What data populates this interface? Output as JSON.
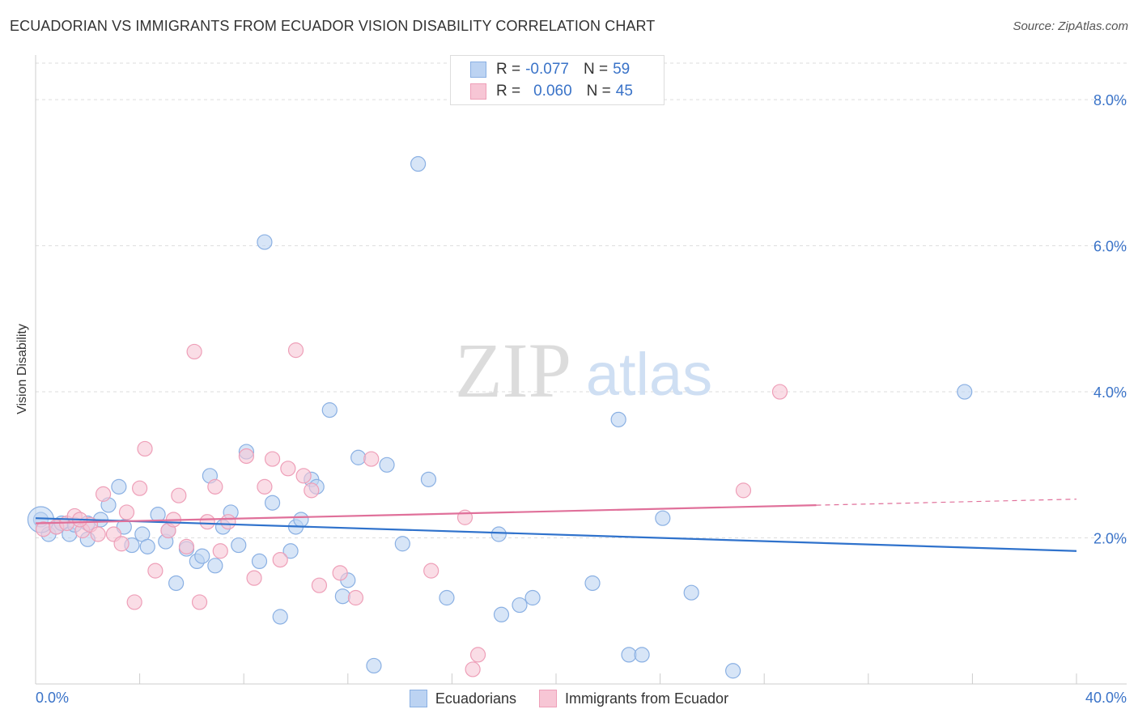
{
  "title": "ECUADORIAN VS IMMIGRANTS FROM ECUADOR VISION DISABILITY CORRELATION CHART",
  "source": "Source: ZipAtlas.com",
  "watermark": {
    "zip": "ZIP",
    "atlas": "atlas"
  },
  "colors": {
    "blue_fill": "#bcd3f2",
    "blue_stroke": "#8ab0e3",
    "blue_line": "#2f72cc",
    "pink_fill": "#f7c6d5",
    "pink_stroke": "#ee9fb8",
    "pink_line": "#e0709a",
    "axis_text": "#3a73c8",
    "grid": "#dddddd"
  },
  "legend_top": [
    {
      "r_label": "R =",
      "r_value": "-0.077",
      "n_label": "N =",
      "n_value": "59",
      "color": "blue"
    },
    {
      "r_label": "R =",
      "r_value": "0.060",
      "n_label": "N =",
      "n_value": "45",
      "color": "pink"
    }
  ],
  "chart_data": {
    "type": "scatter",
    "title": "ECUADORIAN VS IMMIGRANTS FROM ECUADOR VISION DISABILITY CORRELATION CHART",
    "xlabel": "",
    "ylabel": "Vision Disability",
    "xlim": [
      0,
      40
    ],
    "ylim": [
      0,
      8.5
    ],
    "x_tick_labels": [
      "0.0%",
      "40.0%"
    ],
    "y_ticks": [
      2,
      4,
      6,
      8
    ],
    "y_tick_labels": [
      "2.0%",
      "4.0%",
      "6.0%",
      "8.0%"
    ],
    "grid": true,
    "legend_position": "bottom",
    "series": [
      {
        "name": "Ecuadorians",
        "color": "#bcd3f2",
        "trend": {
          "x": [
            0,
            40
          ],
          "y": [
            2.27,
            1.82
          ],
          "dashed_from": null
        },
        "points": [
          [
            0.2,
            2.25
          ],
          [
            0.5,
            2.05
          ],
          [
            0.8,
            2.15
          ],
          [
            1.0,
            2.2
          ],
          [
            1.3,
            2.05
          ],
          [
            1.5,
            2.18
          ],
          [
            2.0,
            2.2
          ],
          [
            2.0,
            1.98
          ],
          [
            2.5,
            2.25
          ],
          [
            2.8,
            2.45
          ],
          [
            3.2,
            2.7
          ],
          [
            3.4,
            2.15
          ],
          [
            3.7,
            1.9
          ],
          [
            4.1,
            2.05
          ],
          [
            4.3,
            1.88
          ],
          [
            4.7,
            2.32
          ],
          [
            5.0,
            1.95
          ],
          [
            5.1,
            2.1
          ],
          [
            5.4,
            1.38
          ],
          [
            5.8,
            1.85
          ],
          [
            6.2,
            1.68
          ],
          [
            6.4,
            1.75
          ],
          [
            6.7,
            2.85
          ],
          [
            6.9,
            1.62
          ],
          [
            7.2,
            2.15
          ],
          [
            7.5,
            2.35
          ],
          [
            7.8,
            1.9
          ],
          [
            8.1,
            3.18
          ],
          [
            8.6,
            1.68
          ],
          [
            8.8,
            6.05
          ],
          [
            9.1,
            2.48
          ],
          [
            9.4,
            0.92
          ],
          [
            9.8,
            1.82
          ],
          [
            10.0,
            2.15
          ],
          [
            10.2,
            2.25
          ],
          [
            10.6,
            2.8
          ],
          [
            10.8,
            2.7
          ],
          [
            11.3,
            3.75
          ],
          [
            11.8,
            1.2
          ],
          [
            12.0,
            1.42
          ],
          [
            12.4,
            3.1
          ],
          [
            13.0,
            0.25
          ],
          [
            13.5,
            3.0
          ],
          [
            14.1,
            1.92
          ],
          [
            14.7,
            7.12
          ],
          [
            15.1,
            2.8
          ],
          [
            15.8,
            1.18
          ],
          [
            17.8,
            2.05
          ],
          [
            17.9,
            0.95
          ],
          [
            18.6,
            1.08
          ],
          [
            19.1,
            1.18
          ],
          [
            21.4,
            1.38
          ],
          [
            22.4,
            3.62
          ],
          [
            22.8,
            0.4
          ],
          [
            23.3,
            0.4
          ],
          [
            24.1,
            2.27
          ],
          [
            25.2,
            1.25
          ],
          [
            26.8,
            0.18
          ],
          [
            35.7,
            4.0
          ]
        ]
      },
      {
        "name": "Immigrants from Ecuador",
        "color": "#f7c6d5",
        "trend": {
          "x": [
            0,
            40
          ],
          "y": [
            2.2,
            2.53
          ],
          "dashed_from": 30
        },
        "points": [
          [
            0.3,
            2.12
          ],
          [
            0.8,
            2.15
          ],
          [
            1.2,
            2.2
          ],
          [
            1.5,
            2.3
          ],
          [
            1.8,
            2.1
          ],
          [
            2.1,
            2.18
          ],
          [
            2.4,
            2.05
          ],
          [
            2.6,
            2.6
          ],
          [
            3.0,
            2.05
          ],
          [
            3.3,
            1.92
          ],
          [
            3.5,
            2.35
          ],
          [
            3.8,
            1.12
          ],
          [
            4.0,
            2.68
          ],
          [
            4.2,
            3.22
          ],
          [
            4.6,
            1.55
          ],
          [
            5.1,
            2.1
          ],
          [
            5.3,
            2.25
          ],
          [
            5.5,
            2.58
          ],
          [
            5.8,
            1.88
          ],
          [
            6.1,
            4.55
          ],
          [
            6.3,
            1.12
          ],
          [
            6.6,
            2.22
          ],
          [
            6.9,
            2.7
          ],
          [
            7.1,
            1.82
          ],
          [
            7.4,
            2.22
          ],
          [
            8.1,
            3.12
          ],
          [
            8.4,
            1.45
          ],
          [
            8.8,
            2.7
          ],
          [
            9.1,
            3.08
          ],
          [
            9.4,
            1.7
          ],
          [
            9.7,
            2.95
          ],
          [
            10.0,
            4.57
          ],
          [
            10.3,
            2.85
          ],
          [
            10.6,
            2.65
          ],
          [
            10.9,
            1.35
          ],
          [
            11.7,
            1.52
          ],
          [
            12.3,
            1.18
          ],
          [
            12.9,
            3.08
          ],
          [
            15.2,
            1.55
          ],
          [
            16.5,
            2.28
          ],
          [
            16.8,
            0.2
          ],
          [
            17.0,
            0.4
          ],
          [
            27.2,
            2.65
          ],
          [
            28.6,
            4.0
          ],
          [
            1.7,
            2.25
          ]
        ]
      }
    ]
  },
  "legend_bottom": [
    "Ecuadorians",
    "Immigrants from Ecuador"
  ]
}
